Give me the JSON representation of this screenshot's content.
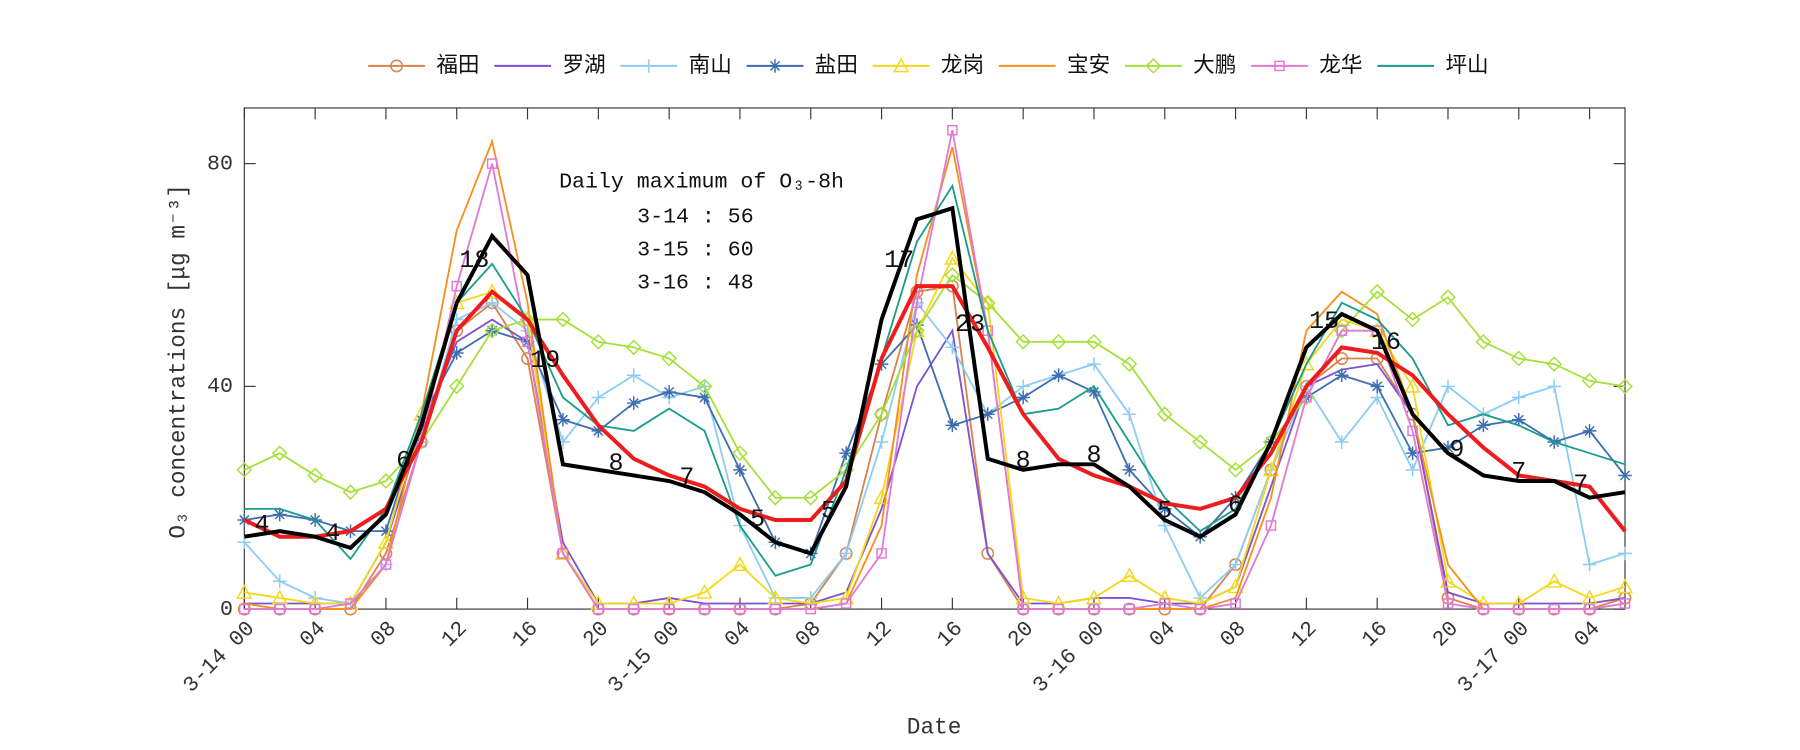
{
  "chart_data": {
    "type": "line",
    "xlabel": "Date",
    "ylabel": "O₃ concentrations [μg m⁻³]",
    "x": [
      0,
      2,
      4,
      6,
      8,
      10,
      12,
      14,
      16,
      18,
      20,
      22,
      24,
      26,
      28,
      30,
      32,
      34,
      36,
      38,
      40,
      42,
      44,
      46,
      48,
      50,
      52,
      54,
      56,
      58,
      60,
      62,
      64,
      66,
      68,
      70,
      72,
      74,
      76,
      78
    ],
    "xlim": [
      0,
      78
    ],
    "xticks": [
      {
        "value": 0,
        "label": "3-14 00"
      },
      {
        "value": 4,
        "label": "04"
      },
      {
        "value": 8,
        "label": "08"
      },
      {
        "value": 12,
        "label": "12"
      },
      {
        "value": 16,
        "label": "16"
      },
      {
        "value": 20,
        "label": "20"
      },
      {
        "value": 24,
        "label": "3-15 00"
      },
      {
        "value": 28,
        "label": "04"
      },
      {
        "value": 32,
        "label": "08"
      },
      {
        "value": 36,
        "label": "12"
      },
      {
        "value": 40,
        "label": "16"
      },
      {
        "value": 44,
        "label": "20"
      },
      {
        "value": 48,
        "label": "3-16 00"
      },
      {
        "value": 52,
        "label": "04"
      },
      {
        "value": 56,
        "label": "08"
      },
      {
        "value": 60,
        "label": "12"
      },
      {
        "value": 64,
        "label": "16"
      },
      {
        "value": 68,
        "label": "20"
      },
      {
        "value": 72,
        "label": "3-17 00"
      },
      {
        "value": 76,
        "label": "04"
      }
    ],
    "ylim": [
      0,
      90
    ],
    "yticks": [
      0,
      40,
      80
    ],
    "legend": "top",
    "series": [
      {
        "name": "福田",
        "color": "#d9824c",
        "marker": "circle",
        "values": [
          0,
          0,
          0,
          0,
          10,
          30,
          50,
          55,
          45,
          10,
          0,
          0,
          0,
          0,
          0,
          0,
          1,
          10,
          35,
          57,
          58,
          10,
          0,
          0,
          0,
          0,
          0,
          0,
          8,
          25,
          40,
          45,
          45,
          35,
          2,
          0,
          0,
          0,
          0,
          2
        ]
      },
      {
        "name": "罗湖",
        "color": "#7b52d4",
        "marker": "none",
        "values": [
          1,
          1,
          1,
          1,
          12,
          32,
          48,
          52,
          48,
          12,
          1,
          1,
          2,
          1,
          1,
          1,
          1,
          3,
          18,
          40,
          50,
          10,
          1,
          1,
          2,
          2,
          1,
          1,
          4,
          22,
          40,
          43,
          44,
          35,
          3,
          1,
          1,
          1,
          1,
          2
        ]
      },
      {
        "name": "南山",
        "color": "#8dcdf5",
        "marker": "plus",
        "values": [
          12,
          5,
          2,
          1,
          8,
          30,
          52,
          55,
          50,
          30,
          38,
          42,
          38,
          40,
          15,
          2,
          2,
          10,
          30,
          55,
          47,
          35,
          40,
          42,
          44,
          35,
          15,
          2,
          8,
          25,
          40,
          30,
          38,
          25,
          40,
          35,
          38,
          40,
          8,
          10
        ]
      },
      {
        "name": "盐田",
        "color": "#3d6fb0",
        "marker": "star",
        "values": [
          16,
          17,
          16,
          14,
          14,
          34,
          46,
          50,
          48,
          34,
          32,
          37,
          39,
          38,
          25,
          12,
          10,
          28,
          44,
          51,
          33,
          35,
          38,
          42,
          39,
          25,
          18,
          13,
          20,
          30,
          38,
          42,
          40,
          28,
          29,
          33,
          34,
          30,
          32,
          24
        ]
      },
      {
        "name": "龙岗",
        "color": "#f5d81a",
        "marker": "triangle",
        "values": [
          3,
          2,
          1,
          1,
          12,
          35,
          55,
          57,
          52,
          10,
          1,
          1,
          1,
          3,
          8,
          2,
          1,
          2,
          20,
          50,
          63,
          55,
          2,
          1,
          2,
          6,
          2,
          1,
          4,
          25,
          44,
          52,
          50,
          40,
          5,
          1,
          1,
          5,
          2,
          4
        ]
      },
      {
        "name": "宝安",
        "color": "#f5901e",
        "marker": "none",
        "values": [
          1,
          0,
          0,
          0,
          8,
          35,
          68,
          84,
          55,
          10,
          0,
          0,
          0,
          0,
          0,
          0,
          0,
          1,
          15,
          60,
          83,
          50,
          0,
          0,
          0,
          0,
          0,
          0,
          2,
          20,
          50,
          57,
          53,
          35,
          8,
          0,
          0,
          0,
          0,
          1
        ]
      },
      {
        "name": "大鹏",
        "color": "#a6e03a",
        "marker": "diamond",
        "values": [
          25,
          28,
          24,
          21,
          23,
          30,
          40,
          50,
          52,
          52,
          48,
          47,
          45,
          40,
          28,
          20,
          20,
          25,
          35,
          50,
          60,
          55,
          48,
          48,
          48,
          44,
          35,
          30,
          25,
          30,
          38,
          50,
          57,
          52,
          56,
          48,
          45,
          44,
          41,
          40
        ]
      },
      {
        "name": "龙华",
        "color": "#e07ad6",
        "marker": "square",
        "values": [
          0,
          0,
          0,
          1,
          8,
          30,
          58,
          80,
          48,
          10,
          0,
          0,
          0,
          0,
          0,
          0,
          0,
          1,
          10,
          55,
          86,
          50,
          0,
          0,
          0,
          0,
          1,
          0,
          1,
          15,
          38,
          50,
          50,
          32,
          1,
          0,
          0,
          0,
          0,
          1
        ]
      },
      {
        "name": "坪山",
        "color": "#1a9c8c",
        "marker": "none",
        "values": [
          18,
          18,
          16,
          9,
          18,
          35,
          55,
          62,
          52,
          38,
          33,
          32,
          36,
          32,
          15,
          6,
          8,
          25,
          45,
          66,
          76,
          50,
          35,
          36,
          40,
          30,
          20,
          14,
          18,
          30,
          44,
          55,
          52,
          45,
          33,
          35,
          33,
          30,
          28,
          26
        ]
      },
      {
        "color": "#ee1c1c",
        "marker": "none",
        "width": 3.5,
        "values": [
          16,
          13,
          13,
          14,
          18,
          30,
          50,
          57,
          52,
          42,
          33,
          27,
          24,
          22,
          18,
          16,
          16,
          23,
          45,
          58,
          58,
          47,
          35,
          27,
          24,
          22,
          19,
          18,
          20,
          28,
          40,
          47,
          46,
          42,
          35,
          29,
          24,
          23,
          22,
          14
        ]
      },
      {
        "color": "#000000",
        "marker": "none",
        "width": 3.5,
        "values": [
          13,
          14,
          13,
          11,
          17,
          33,
          55,
          67,
          60,
          26,
          25,
          24,
          23,
          21,
          17,
          12,
          10,
          22,
          52,
          70,
          72,
          27,
          25,
          26,
          26,
          22,
          16,
          13,
          17,
          30,
          47,
          53,
          50,
          35,
          28,
          24,
          23,
          23,
          20,
          21
        ]
      }
    ],
    "point_labels": [
      {
        "x": 1,
        "label": "4"
      },
      {
        "x": 5,
        "label": "4"
      },
      {
        "x": 9,
        "label": "6"
      },
      {
        "x": 13,
        "label": "18"
      },
      {
        "x": 17,
        "label": "19"
      },
      {
        "x": 21,
        "label": "8"
      },
      {
        "x": 25,
        "label": "7"
      },
      {
        "x": 29,
        "label": "5"
      },
      {
        "x": 33,
        "label": "5"
      },
      {
        "x": 37,
        "label": "17"
      },
      {
        "x": 41,
        "label": "23"
      },
      {
        "x": 44,
        "label": "8"
      },
      {
        "x": 48,
        "label": "8"
      },
      {
        "x": 52,
        "label": "5"
      },
      {
        "x": 56,
        "label": "6"
      },
      {
        "x": 61,
        "label": "15"
      },
      {
        "x": 64.5,
        "label": "16"
      },
      {
        "x": 68.5,
        "label": "9"
      },
      {
        "x": 72,
        "label": "7"
      },
      {
        "x": 75.5,
        "label": "7"
      }
    ],
    "annotation": {
      "title": "Daily maximum of O₃-8h",
      "lines": [
        "3-14 : 56",
        "3-15 : 60",
        "3-16 : 48"
      ]
    }
  }
}
